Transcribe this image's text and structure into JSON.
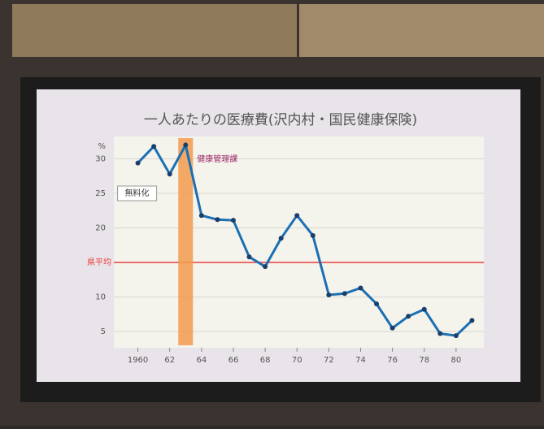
{
  "chart_data": {
    "type": "line",
    "title": "一人あたりの医療費(沢内村・国民健康保険)",
    "y_unit": "%",
    "x": [
      1960,
      1961,
      1962,
      1963,
      1964,
      1965,
      1966,
      1967,
      1968,
      1969,
      1970,
      1971,
      1972,
      1973,
      1974,
      1975,
      1976,
      1977,
      1978,
      1979,
      1980,
      1981
    ],
    "series": [
      {
        "name": "沢内村",
        "color": "#1b6fb3",
        "values": [
          29.4,
          31.8,
          27.8,
          32,
          21.8,
          21.2,
          21.1,
          15.8,
          14.4,
          18.5,
          21.8,
          18.9,
          10.3,
          10.5,
          11.3,
          9,
          5.5,
          7.2,
          8.2,
          4.7,
          4.4,
          6.6
        ]
      }
    ],
    "xlim": [
      1959,
      1982
    ],
    "xticks": [
      1960,
      {
        "value": 1962,
        "label": "62"
      },
      {
        "value": 1964,
        "label": "64"
      },
      {
        "value": 1966,
        "label": "66"
      },
      {
        "value": 1968,
        "label": "68"
      },
      {
        "value": 1970,
        "label": "70"
      },
      {
        "value": 1972,
        "label": "72"
      },
      {
        "value": 1974,
        "label": "74"
      },
      {
        "value": 1976,
        "label": "76"
      },
      {
        "value": 1978,
        "label": "78"
      },
      {
        "value": 1980,
        "label": "80"
      }
    ],
    "ylim": [
      3,
      33
    ],
    "yticks": [
      5,
      10,
      20,
      25,
      30
    ],
    "reference_line": {
      "label": "県平均",
      "value": 15,
      "color": "#e8413c"
    },
    "band": {
      "label": "健康管理課",
      "x": 1963,
      "color": "#f39a4e"
    },
    "note": {
      "label": "無料化",
      "x": 1960,
      "y": 25
    },
    "grid": true
  }
}
